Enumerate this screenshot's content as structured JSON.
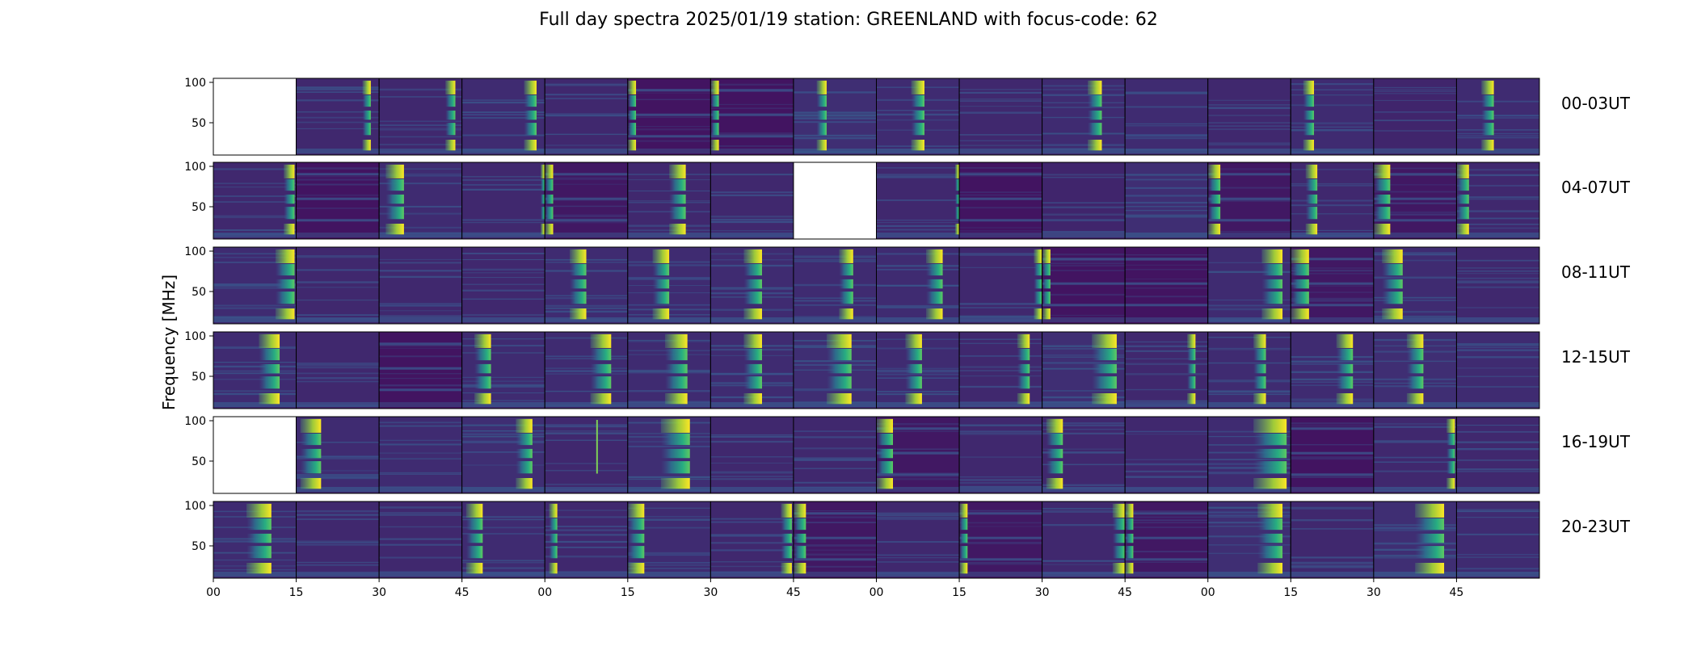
{
  "chart_data": {
    "type": "heatmap",
    "title": "Full day spectra 2025/01/19 station: GREENLAND with focus-code: 62",
    "ylabel": "Frequency [MHz]",
    "xlabel": "",
    "ylim": [
      10,
      105
    ],
    "yticks": [
      50,
      100
    ],
    "xticks": [
      "00",
      "15",
      "30",
      "45",
      "00",
      "15",
      "30",
      "45",
      "00",
      "15",
      "30",
      "45",
      "00",
      "15",
      "30",
      "45"
    ],
    "colormap": "viridis",
    "colors": {
      "low": "#440154",
      "mid": "#3b528b",
      "teal": "#21918c",
      "high": "#fde725"
    },
    "rows": [
      {
        "label": "00-03UT",
        "panels": [
          {
            "empty": true
          },
          {
            "burst": [
              0.8,
              0.9
            ],
            "bg": 0.12
          },
          {
            "burst": [
              0.8,
              0.92
            ],
            "bg": 0.12
          },
          {
            "burst": [
              0.75,
              0.9
            ],
            "bg": 0.13
          },
          {
            "burst": null,
            "bg": 0.12
          },
          {
            "burst": [
              0.0,
              0.1
            ],
            "bg": 0.06,
            "dark": true
          },
          {
            "burst": [
              0.0,
              0.1
            ],
            "bg": 0.06,
            "dark": true
          },
          {
            "burst": [
              0.28,
              0.4
            ],
            "bg": 0.14
          },
          {
            "burst": [
              0.42,
              0.58
            ],
            "bg": 0.13
          },
          {
            "burst": null,
            "bg": 0.12
          },
          {
            "burst": [
              0.55,
              0.72
            ],
            "bg": 0.13
          },
          {
            "burst": null,
            "bg": 0.13
          },
          {
            "burst": null,
            "bg": 0.12
          },
          {
            "burst": [
              0.15,
              0.28
            ],
            "bg": 0.13
          },
          {
            "burst": null,
            "bg": 0.11
          },
          {
            "burst": [
              0.3,
              0.45
            ],
            "bg": 0.13
          }
        ]
      },
      {
        "label": "04-07UT",
        "panels": [
          {
            "burst": [
              0.85,
              0.98
            ],
            "bg": 0.12
          },
          {
            "burst": null,
            "bg": 0.06,
            "dark": true
          },
          {
            "burst": [
              0.08,
              0.3
            ],
            "bg": 0.13
          },
          {
            "burst": [
              0.95,
              1.0
            ],
            "bg": 0.12
          },
          {
            "burst": [
              0.0,
              0.1
            ],
            "bg": 0.07,
            "dark": true
          },
          {
            "burst": [
              0.5,
              0.7
            ],
            "bg": 0.12
          },
          {
            "burst": null,
            "bg": 0.12
          },
          {
            "empty": true
          },
          {
            "burst": [
              0.95,
              1.0
            ],
            "bg": 0.12
          },
          {
            "burst": null,
            "bg": 0.06,
            "dark": true
          },
          {
            "burst": null,
            "bg": 0.11
          },
          {
            "burst": null,
            "bg": 0.14
          },
          {
            "burst": [
              0.0,
              0.15
            ],
            "bg": 0.07,
            "dark": true
          },
          {
            "burst": [
              0.18,
              0.32
            ],
            "bg": 0.12
          },
          {
            "burst": [
              0.0,
              0.2
            ],
            "bg": 0.07,
            "dark": true
          },
          {
            "burst": [
              0.0,
              0.15
            ],
            "bg": 0.12
          }
        ]
      },
      {
        "label": "08-11UT",
        "panels": [
          {
            "burst": [
              0.75,
              0.98
            ],
            "bg": 0.13
          },
          {
            "burst": null,
            "bg": 0.12
          },
          {
            "burst": null,
            "bg": 0.12
          },
          {
            "burst": null,
            "bg": 0.12
          },
          {
            "burst": [
              0.3,
              0.5
            ],
            "bg": 0.13
          },
          {
            "burst": [
              0.3,
              0.5
            ],
            "bg": 0.13
          },
          {
            "burst": [
              0.4,
              0.62
            ],
            "bg": 0.13
          },
          {
            "burst": [
              0.55,
              0.72
            ],
            "bg": 0.13
          },
          {
            "burst": [
              0.6,
              0.8
            ],
            "bg": 0.13
          },
          {
            "burst": [
              0.9,
              1.0
            ],
            "bg": 0.12
          },
          {
            "burst": [
              0.0,
              0.1
            ],
            "bg": 0.06,
            "dark": true
          },
          {
            "burst": null,
            "bg": 0.06,
            "dark": true
          },
          {
            "burst": [
              0.65,
              0.9
            ],
            "bg": 0.13
          },
          {
            "burst": [
              0.0,
              0.22
            ],
            "bg": 0.07,
            "dark": true
          },
          {
            "burst": [
              0.1,
              0.35
            ],
            "bg": 0.13
          },
          {
            "burst": null,
            "bg": 0.12
          }
        ]
      },
      {
        "label": "12-15UT",
        "panels": [
          {
            "burst": [
              0.55,
              0.8
            ],
            "bg": 0.13
          },
          {
            "burst": null,
            "bg": 0.12
          },
          {
            "burst": null,
            "bg": 0.06,
            "dark": true
          },
          {
            "burst": [
              0.15,
              0.35
            ],
            "bg": 0.13
          },
          {
            "burst": [
              0.55,
              0.8
            ],
            "bg": 0.13
          },
          {
            "burst": [
              0.45,
              0.72
            ],
            "bg": 0.13
          },
          {
            "burst": [
              0.4,
              0.62
            ],
            "bg": 0.13
          },
          {
            "burst": [
              0.4,
              0.7
            ],
            "bg": 0.14
          },
          {
            "burst": [
              0.35,
              0.55
            ],
            "bg": 0.13
          },
          {
            "burst": [
              0.7,
              0.85
            ],
            "bg": 0.12
          },
          {
            "burst": [
              0.6,
              0.9
            ],
            "bg": 0.14
          },
          {
            "burst": [
              0.75,
              0.85
            ],
            "bg": 0.12
          },
          {
            "burst": [
              0.55,
              0.7
            ],
            "bg": 0.13
          },
          {
            "burst": [
              0.55,
              0.75
            ],
            "bg": 0.13
          },
          {
            "burst": [
              0.4,
              0.6
            ],
            "bg": 0.14
          },
          {
            "burst": null,
            "bg": 0.13
          }
        ]
      },
      {
        "label": "16-19UT",
        "panels": [
          {
            "empty": true
          },
          {
            "burst": [
              0.05,
              0.3
            ],
            "bg": 0.13
          },
          {
            "burst": null,
            "bg": 0.13
          },
          {
            "burst": [
              0.65,
              0.85
            ],
            "bg": 0.14
          },
          {
            "burst": null,
            "bg": 0.12,
            "spike": 0.62
          },
          {
            "burst": [
              0.4,
              0.75
            ],
            "bg": 0.14
          },
          {
            "burst": null,
            "bg": 0.12
          },
          {
            "burst": null,
            "bg": 0.12
          },
          {
            "burst": [
              0.0,
              0.2
            ],
            "bg": 0.07,
            "dark": true
          },
          {
            "burst": null,
            "bg": 0.12
          },
          {
            "burst": [
              0.05,
              0.25
            ],
            "bg": 0.12
          },
          {
            "burst": null,
            "bg": 0.12
          },
          {
            "burst": [
              0.55,
              0.95
            ],
            "bg": 0.13
          },
          {
            "burst": null,
            "bg": 0.06,
            "dark": true
          },
          {
            "burst": [
              0.88,
              0.98
            ],
            "bg": 0.12
          },
          {
            "burst": null,
            "bg": 0.12
          }
        ]
      },
      {
        "label": "20-23UT",
        "panels": [
          {
            "burst": [
              0.4,
              0.7
            ],
            "bg": 0.13
          },
          {
            "burst": null,
            "bg": 0.12
          },
          {
            "burst": null,
            "bg": 0.12
          },
          {
            "burst": [
              0.05,
              0.25
            ],
            "bg": 0.13
          },
          {
            "burst": [
              0.05,
              0.15
            ],
            "bg": 0.12
          },
          {
            "burst": [
              0.0,
              0.2
            ],
            "bg": 0.13
          },
          {
            "burst": [
              0.85,
              0.98
            ],
            "bg": 0.12
          },
          {
            "burst": [
              0.0,
              0.15
            ],
            "bg": 0.07,
            "dark": true
          },
          {
            "burst": null,
            "bg": 0.12
          },
          {
            "burst": [
              0.0,
              0.1
            ],
            "bg": 0.07,
            "dark": true
          },
          {
            "burst": [
              0.85,
              1.0
            ],
            "bg": 0.12
          },
          {
            "burst": [
              0.0,
              0.1
            ],
            "bg": 0.07,
            "dark": true
          },
          {
            "burst": [
              0.6,
              0.9
            ],
            "bg": 0.14
          },
          {
            "burst": null,
            "bg": 0.12
          },
          {
            "burst": [
              0.5,
              0.85
            ],
            "bg": 0.14
          },
          {
            "burst": null,
            "bg": 0.13
          }
        ]
      }
    ]
  }
}
